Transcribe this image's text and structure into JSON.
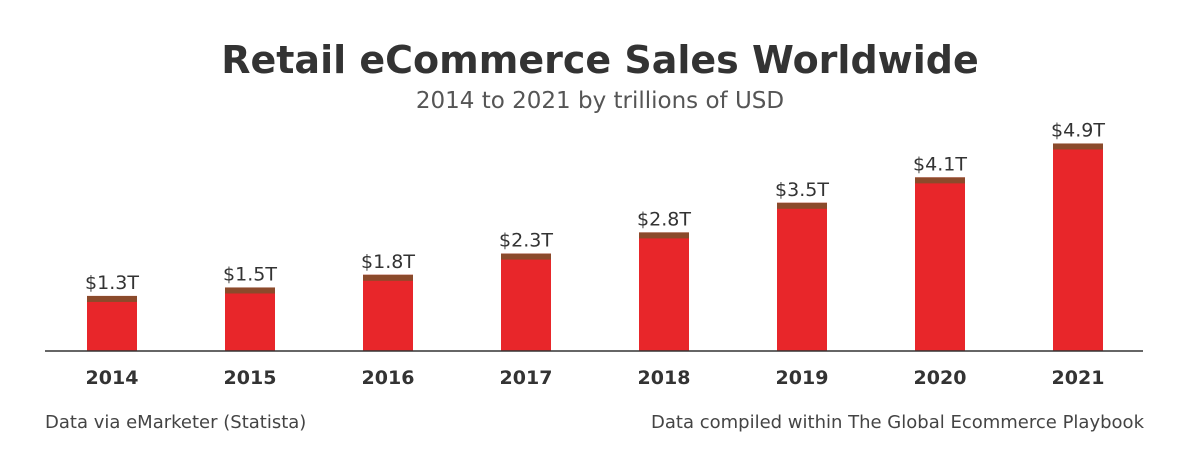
{
  "chart_data": {
    "type": "bar",
    "title": "Retail eCommerce Sales Worldwide",
    "subtitle": "2014 to 2021 by trillions of USD",
    "categories": [
      "2014",
      "2015",
      "2016",
      "2017",
      "2018",
      "2019",
      "2020",
      "2021"
    ],
    "values": [
      1.3,
      1.5,
      1.8,
      2.3,
      2.8,
      3.5,
      4.1,
      4.9
    ],
    "data_labels": [
      "$1.3T",
      "$1.5T",
      "$1.8T",
      "$2.3T",
      "$2.8T",
      "$3.5T",
      "$4.1T",
      "$4.9T"
    ],
    "xlabel": "",
    "ylabel": "",
    "ylim": [
      0,
      5.0
    ],
    "grid": false,
    "legend": "none",
    "colors": {
      "bar": "#e8262a",
      "bar_cap": "#8b4a2b",
      "axis": "#333333",
      "title": "#333333",
      "subtitle": "#555555",
      "label": "#333333"
    }
  },
  "footer": {
    "left": "Data via eMarketer (Statista)",
    "right": "Data compiled within The Global Ecommerce Playbook"
  }
}
